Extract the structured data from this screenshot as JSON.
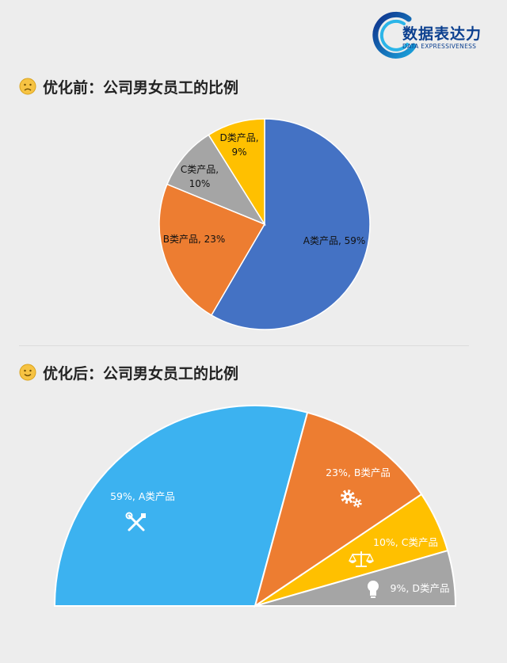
{
  "logo": {
    "cn": "数据表达力",
    "en": "DATA EXPRESSIVENESS"
  },
  "sections": {
    "before": {
      "title": "优化前：公司男女员工的比例"
    },
    "after": {
      "title": "优化后：公司男女员工的比例"
    }
  },
  "colors": {
    "A_before": "#4472c4",
    "A_after": "#3cb2f0",
    "B": "#ed7d31",
    "C_before": "#a5a5a5",
    "C_after": "#ffc000",
    "D_before": "#ffc000",
    "D_after": "#a5a5a5"
  },
  "chart_data": [
    {
      "type": "pie",
      "title": "",
      "categories": [
        "A类产品",
        "B类产品",
        "C类产品",
        "D类产品"
      ],
      "values": [
        59,
        23,
        10,
        9
      ],
      "unit": "%",
      "data_labels": [
        "A类产品, 59%",
        "B类产品, 23%",
        "C类产品, 10%",
        "D类产品, 9%"
      ]
    },
    {
      "type": "pie",
      "subtype": "half-pie",
      "title": "",
      "categories": [
        "A类产品",
        "B类产品",
        "C类产品",
        "D类产品"
      ],
      "values": [
        59,
        23,
        10,
        9
      ],
      "unit": "%",
      "data_labels": [
        "59%, A类产品",
        "23%, B类产品",
        "10%, C类产品",
        "9%, D类产品"
      ],
      "icons": [
        "tools-icon",
        "gears-icon",
        "scale-icon",
        "lightbulb-icon"
      ]
    }
  ]
}
